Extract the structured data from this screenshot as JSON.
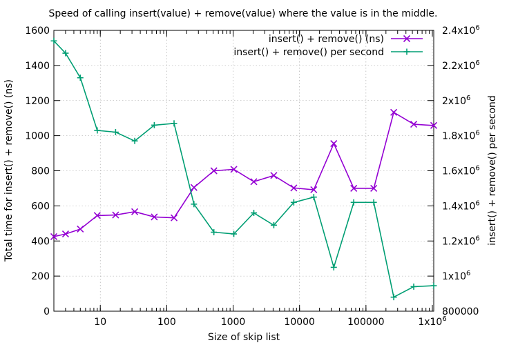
{
  "chart_data": {
    "type": "line",
    "title": "Speed of calling insert(value) + remove(value) where the value is in the middle.",
    "xlabel": "Size of skip list",
    "ylabel": "Total time for insert() + remove() (ns)",
    "y2label": "insert() + remove() per second",
    "xscale": "log",
    "xlim": [
      2,
      1048576
    ],
    "ylim": [
      0,
      1600
    ],
    "y2lim": [
      800000,
      2400000
    ],
    "grid": true,
    "legend_position": "top-right",
    "x_ticks": [
      {
        "value": 10,
        "label": "10"
      },
      {
        "value": 100,
        "label": "100"
      },
      {
        "value": 1000,
        "label": "1000"
      },
      {
        "value": 10000,
        "label": "10000"
      },
      {
        "value": 100000,
        "label": "100000"
      },
      {
        "value": 1000000,
        "label": "1x10",
        "sup": "6"
      }
    ],
    "y_ticks": [
      {
        "value": 0,
        "label": "0"
      },
      {
        "value": 200,
        "label": "200"
      },
      {
        "value": 400,
        "label": "400"
      },
      {
        "value": 600,
        "label": "600"
      },
      {
        "value": 800,
        "label": "800"
      },
      {
        "value": 1000,
        "label": "1000"
      },
      {
        "value": 1200,
        "label": "1200"
      },
      {
        "value": 1400,
        "label": "1400"
      },
      {
        "value": 1600,
        "label": "1600"
      }
    ],
    "y2_ticks": [
      {
        "value": 800000,
        "label": "800000",
        "sup": ""
      },
      {
        "value": 1000000,
        "label": "1x10",
        "sup": "6"
      },
      {
        "value": 1200000,
        "label": "1.2x10",
        "sup": "6"
      },
      {
        "value": 1400000,
        "label": "1.4x10",
        "sup": "6"
      },
      {
        "value": 1600000,
        "label": "1.6x10",
        "sup": "6"
      },
      {
        "value": 1800000,
        "label": "1.8x10",
        "sup": "6"
      },
      {
        "value": 2000000,
        "label": "2x10",
        "sup": "6"
      },
      {
        "value": 2200000,
        "label": "2.2x10",
        "sup": "6"
      },
      {
        "value": 2400000,
        "label": "2.4x10",
        "sup": "6"
      }
    ],
    "series": [
      {
        "name": "insert() + remove() (ns)",
        "axis": "y",
        "color": "#9400d3",
        "marker": "x",
        "x": [
          2,
          3,
          5,
          9,
          17,
          33,
          65,
          129,
          257,
          513,
          1025,
          2049,
          4097,
          8193,
          16385,
          32769,
          65537,
          131073,
          262145,
          524289,
          1048577
        ],
        "values": [
          425,
          440,
          468,
          545,
          548,
          567,
          537,
          532,
          705,
          800,
          808,
          738,
          773,
          702,
          692,
          955,
          700,
          700,
          1133,
          1065,
          1058
        ]
      },
      {
        "name": "insert() + remove() per second",
        "axis": "y2",
        "color": "#009e73",
        "marker": "+",
        "x": [
          2,
          3,
          5,
          9,
          17,
          33,
          65,
          129,
          257,
          513,
          1025,
          2049,
          4097,
          8193,
          16385,
          32769,
          65537,
          131073,
          262145,
          524289,
          1048577
        ],
        "values": [
          2340000,
          2270000,
          2130000,
          1830000,
          1820000,
          1770000,
          1860000,
          1870000,
          1410000,
          1250000,
          1240000,
          1360000,
          1290000,
          1420000,
          1450000,
          1050000,
          1420000,
          1420000,
          880000,
          940000,
          945000
        ]
      }
    ]
  }
}
